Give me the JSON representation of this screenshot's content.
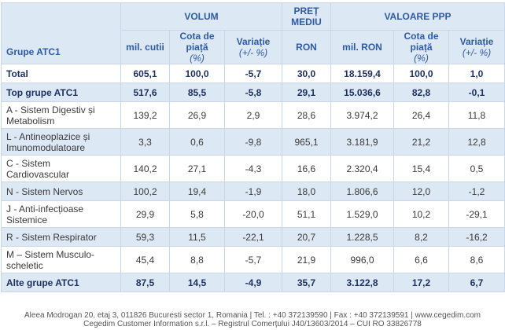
{
  "table": {
    "header": {
      "group_label": "Grupe ATC1",
      "groups": [
        "VOLUM",
        "PREȚ MEDIU",
        "VALOARE PPP"
      ],
      "units": [
        {
          "text": "mil. cutii"
        },
        {
          "text": "Cota de piață",
          "suffix": "(%)"
        },
        {
          "text": "Variație",
          "suffix": "(+/- %)"
        },
        {
          "text": "RON"
        },
        {
          "text": "mil. RON"
        },
        {
          "text": "Cota de piață",
          "suffix": "(%)"
        },
        {
          "text": "Variație",
          "suffix": "(+/- %)"
        }
      ]
    },
    "rows": [
      [
        "Total",
        "605,1",
        "100,0",
        "-5,7",
        "30,0",
        "18.159,4",
        "100,0",
        "1,0"
      ],
      [
        "Top grupe ATC1",
        "517,6",
        "85,5",
        "-5,8",
        "29,1",
        "15.036,6",
        "82,8",
        "-0,1"
      ],
      [
        "A - Sistem Digestiv și Metabolism",
        "139,2",
        "26,9",
        "2,9",
        "28,6",
        "3.974,2",
        "26,4",
        "11,8"
      ],
      [
        "L - Antineoplazice și Imunomodulatoare",
        "3,3",
        "0,6",
        "-9,8",
        "965,1",
        "3.181,9",
        "21,2",
        "12,8"
      ],
      [
        "C - Sistem Cardiovascular",
        "140,2",
        "27,1",
        "-4,3",
        "16,6",
        "2.320,4",
        "15,4",
        "0,5"
      ],
      [
        "N - Sistem Nervos",
        "100,2",
        "19,4",
        "-1,9",
        "18,0",
        "1.806,6",
        "12,0",
        "-1,2"
      ],
      [
        "J - Anti-infecțioase Sistemice",
        "29,9",
        "5,8",
        "-20,0",
        "51,1",
        "1.529,0",
        "10,2",
        "-29,1"
      ],
      [
        "R - Sistem Respirator",
        "59,3",
        "11,5",
        "-22,1",
        "20,7",
        "1.228,5",
        "8,2",
        "-16,2"
      ],
      [
        "M – Sistem Musculo-scheletic",
        "45,4",
        "8,8",
        "-5,7",
        "21,9",
        "996,0",
        "6,6",
        "8,6"
      ],
      [
        "Alte grupe ATC1",
        "87,5",
        "14,5",
        "-4,9",
        "35,7",
        "3.122,8",
        "17,2",
        "6,7"
      ]
    ]
  },
  "footer": [
    "Aleea Modrogan 20, etaj 3, 011826 Bucuresti sector 1, Romania | Tel. : +40 372139590 | Fax : +40 372139591 | www.cegedim.com",
    "Cegedim Customer Information s.r.l. – Registrul Comerțului J40/13603/2014 – CUI RO 33826778"
  ]
}
